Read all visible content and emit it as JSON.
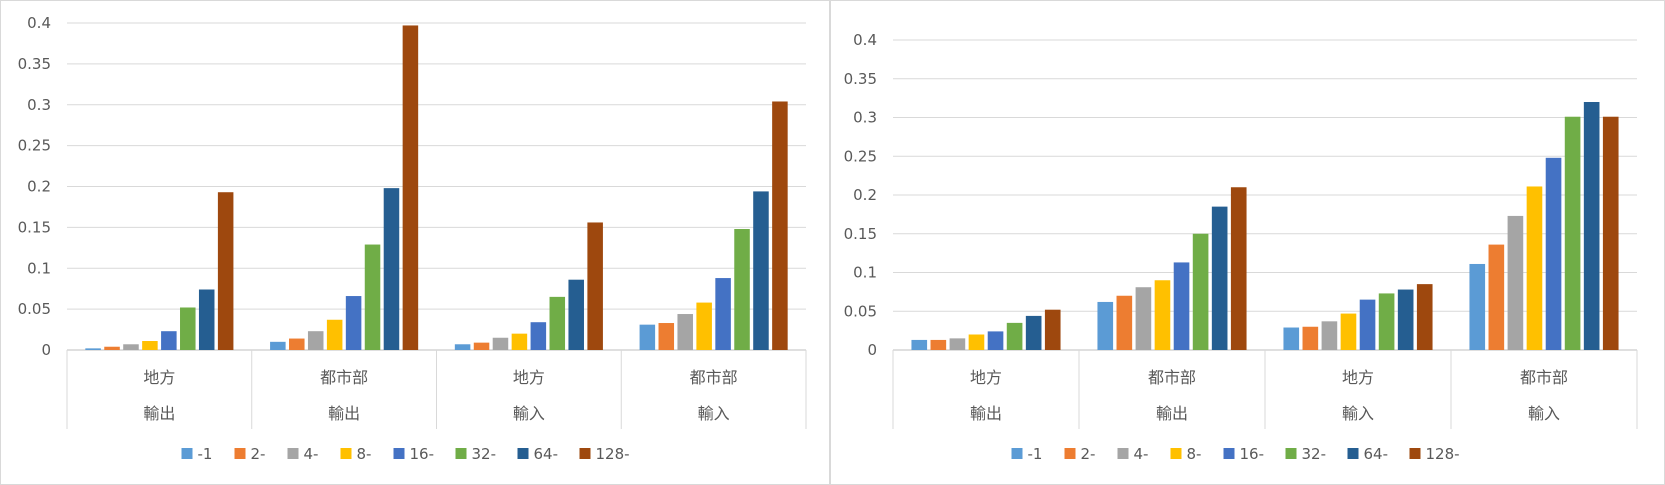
{
  "chart_data": [
    {
      "type": "bar",
      "title": "",
      "xlabel": "",
      "ylabel": "",
      "ylim": [
        0,
        0.4
      ],
      "yticks": [
        "0",
        "0.05",
        "0.1",
        "0.15",
        "0.2",
        "0.25",
        "0.3",
        "0.35",
        "0.4"
      ],
      "grid": true,
      "legend_position": "bottom",
      "categories": [
        {
          "label": "地方",
          "group": "輸出"
        },
        {
          "label": "都市部",
          "group": "輸出"
        },
        {
          "label": "地方",
          "group": "輸入"
        },
        {
          "label": "都市部",
          "group": "輸入"
        }
      ],
      "series": [
        {
          "name": "-1",
          "color": "#5b9bd5",
          "values": [
            0.002,
            0.01,
            0.007,
            0.031
          ]
        },
        {
          "name": "2-",
          "color": "#ed7d31",
          "values": [
            0.004,
            0.014,
            0.009,
            0.033
          ]
        },
        {
          "name": "4-",
          "color": "#a5a5a5",
          "values": [
            0.007,
            0.023,
            0.015,
            0.044
          ]
        },
        {
          "name": "8-",
          "color": "#ffc000",
          "values": [
            0.011,
            0.037,
            0.02,
            0.058
          ]
        },
        {
          "name": "16-",
          "color": "#4472c4",
          "values": [
            0.023,
            0.066,
            0.034,
            0.088
          ]
        },
        {
          "name": "32-",
          "color": "#70ad47",
          "values": [
            0.052,
            0.129,
            0.065,
            0.148
          ]
        },
        {
          "name": "64-",
          "color": "#255e91",
          "values": [
            0.074,
            0.198,
            0.086,
            0.194
          ]
        },
        {
          "name": "128-",
          "color": "#9e480e",
          "values": [
            0.193,
            0.397,
            0.156,
            0.304
          ]
        }
      ]
    },
    {
      "type": "bar",
      "title": "",
      "xlabel": "",
      "ylabel": "",
      "ylim": [
        0,
        0.4
      ],
      "yticks": [
        "0",
        "0.05",
        "0.1",
        "0.15",
        "0.2",
        "0.25",
        "0.3",
        "0.35",
        "0.4"
      ],
      "grid": true,
      "legend_position": "bottom",
      "categories": [
        {
          "label": "地方",
          "group": "輸出"
        },
        {
          "label": "都市部",
          "group": "輸出"
        },
        {
          "label": "地方",
          "group": "輸入"
        },
        {
          "label": "都市部",
          "group": "輸入"
        }
      ],
      "series": [
        {
          "name": "-1",
          "color": "#5b9bd5",
          "values": [
            0.013,
            0.062,
            0.029,
            0.111
          ]
        },
        {
          "name": "2-",
          "color": "#ed7d31",
          "values": [
            0.013,
            0.07,
            0.03,
            0.136
          ]
        },
        {
          "name": "4-",
          "color": "#a5a5a5",
          "values": [
            0.015,
            0.081,
            0.037,
            0.173
          ]
        },
        {
          "name": "8-",
          "color": "#ffc000",
          "values": [
            0.02,
            0.09,
            0.047,
            0.211
          ]
        },
        {
          "name": "16-",
          "color": "#4472c4",
          "values": [
            0.024,
            0.113,
            0.065,
            0.248
          ]
        },
        {
          "name": "32-",
          "color": "#70ad47",
          "values": [
            0.035,
            0.15,
            0.073,
            0.301
          ]
        },
        {
          "name": "64-",
          "color": "#255e91",
          "values": [
            0.044,
            0.185,
            0.078,
            0.32
          ]
        },
        {
          "name": "128-",
          "color": "#9e480e",
          "values": [
            0.052,
            0.21,
            0.085,
            0.301
          ]
        }
      ]
    }
  ]
}
